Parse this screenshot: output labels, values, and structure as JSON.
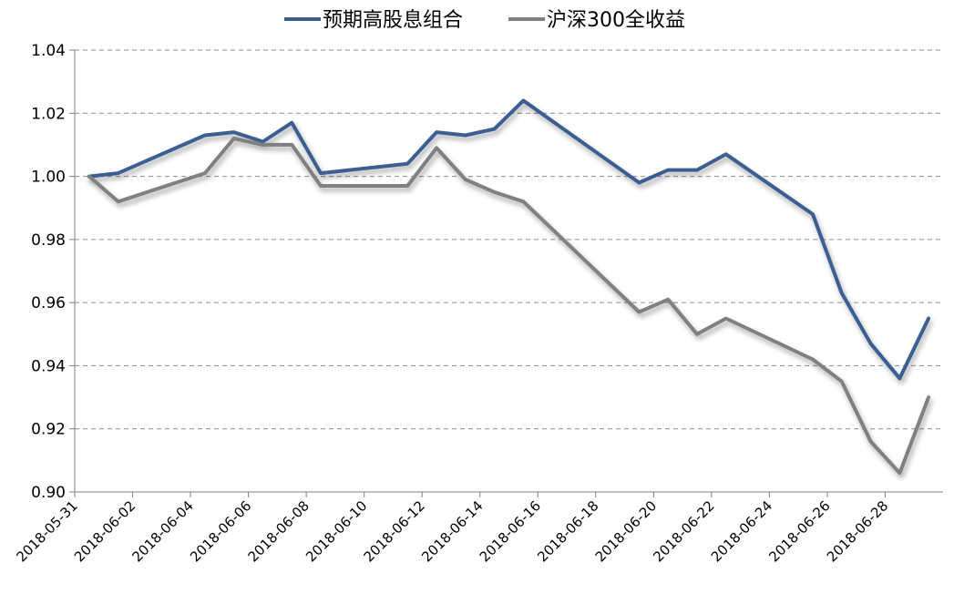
{
  "chart_data": {
    "type": "line",
    "title": "",
    "xlabel": "",
    "ylabel": "",
    "ylim": [
      0.9,
      1.04
    ],
    "yticks": [
      "0.90",
      "0.92",
      "0.94",
      "0.96",
      "0.98",
      "1.00",
      "1.02",
      "1.04"
    ],
    "xlim": [
      "2018-05-31",
      "2018-06-29"
    ],
    "xticks": [
      "2018-05-31",
      "2018-06-02",
      "2018-06-04",
      "2018-06-06",
      "2018-06-08",
      "2018-06-10",
      "2018-06-12",
      "2018-06-14",
      "2018-06-16",
      "2018-06-18",
      "2018-06-20",
      "2018-06-22",
      "2018-06-24",
      "2018-06-26",
      "2018-06-28"
    ],
    "grid": "horizontal-dashed",
    "legend_position": "top",
    "x": [
      "2018-05-31",
      "2018-06-01",
      "2018-06-04",
      "2018-06-05",
      "2018-06-06",
      "2018-06-07",
      "2018-06-08",
      "2018-06-11",
      "2018-06-12",
      "2018-06-13",
      "2018-06-14",
      "2018-06-15",
      "2018-06-19",
      "2018-06-20",
      "2018-06-21",
      "2018-06-22",
      "2018-06-25",
      "2018-06-26",
      "2018-06-27",
      "2018-06-28",
      "2018-06-29"
    ],
    "series": [
      {
        "name": "预期高股息组合",
        "color": "#3a5f91",
        "values": [
          1.0,
          1.001,
          1.013,
          1.014,
          1.011,
          1.017,
          1.001,
          1.004,
          1.014,
          1.013,
          1.015,
          1.024,
          0.998,
          1.002,
          1.002,
          1.007,
          0.988,
          0.963,
          0.947,
          0.936,
          0.955
        ]
      },
      {
        "name": "沪深300全收益",
        "color": "#808080",
        "values": [
          1.0,
          0.992,
          1.001,
          1.012,
          1.01,
          1.01,
          0.997,
          0.997,
          1.009,
          0.999,
          0.995,
          0.992,
          0.957,
          0.961,
          0.95,
          0.955,
          0.942,
          0.935,
          0.916,
          0.906,
          0.93
        ]
      }
    ]
  }
}
